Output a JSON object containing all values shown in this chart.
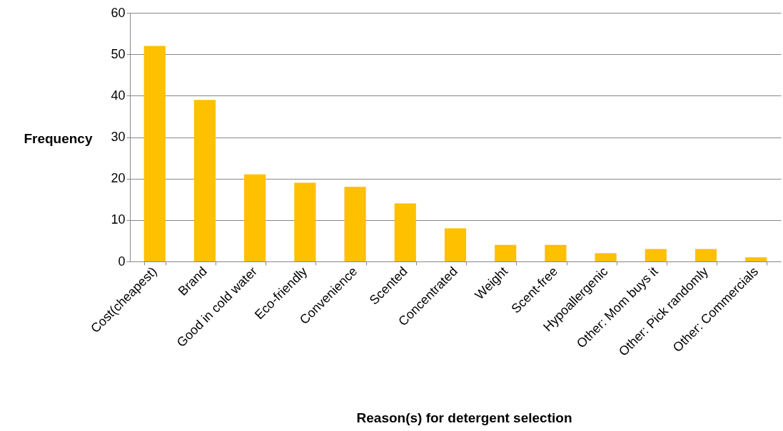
{
  "chart_data": {
    "type": "bar",
    "xlabel": "Reason(s) for detergent selection",
    "ylabel": "Frequency",
    "categories": [
      "Cost(cheapest)",
      "Brand",
      "Good in cold water",
      "Eco-friendly",
      "Convenience",
      "Scented",
      "Concentrated",
      "Weight",
      "Scent-free",
      "Hypoallergenic",
      "Other: Mom buys it",
      "Other: Pick randomly",
      "Other: Commercials"
    ],
    "values": [
      52,
      39,
      21,
      19,
      18,
      14,
      8,
      4,
      4,
      2,
      3,
      3,
      1
    ],
    "color": "#ffc000",
    "ylim": [
      0,
      60
    ],
    "yticks": [
      0,
      10,
      20,
      30,
      40,
      50,
      60
    ],
    "grid": "y"
  }
}
